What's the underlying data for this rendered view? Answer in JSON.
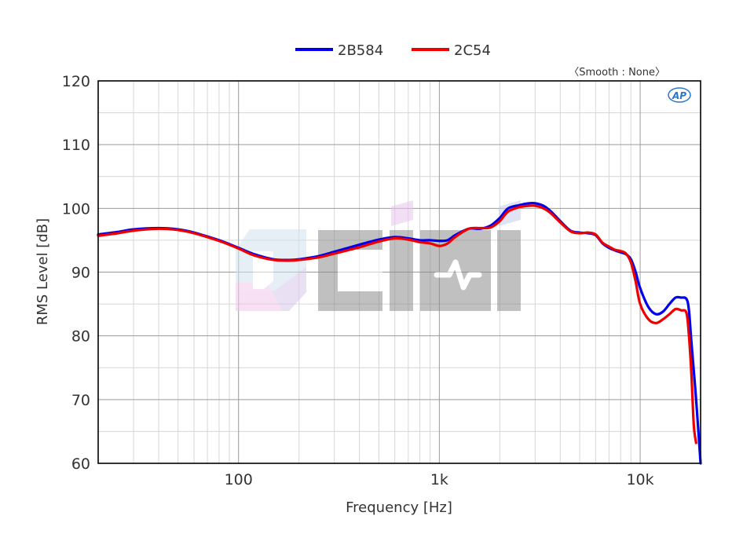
{
  "chart_data": {
    "type": "line",
    "title": "",
    "xlabel": "Frequency [Hz]",
    "ylabel": "RMS Level [dB]",
    "x_scale": "log",
    "xlim": [
      20,
      20000
    ],
    "ylim": [
      60,
      120
    ],
    "x_ticks": [
      100,
      1000,
      10000
    ],
    "x_tick_labels": [
      "100",
      "1k",
      "10k"
    ],
    "y_ticks": [
      60,
      70,
      80,
      90,
      100,
      110,
      120
    ],
    "grid": true,
    "legend_position": "top-center",
    "annotation": "〈Smooth : None〉",
    "logo_text": "AP",
    "watermark_text": "Cini",
    "series": [
      {
        "name": "2B584",
        "color": "#0000ee",
        "x": [
          20,
          25,
          30,
          40,
          50,
          60,
          80,
          100,
          120,
          150,
          180,
          200,
          250,
          300,
          400,
          500,
          600,
          700,
          800,
          900,
          1000,
          1100,
          1200,
          1400,
          1600,
          1800,
          2000,
          2200,
          2500,
          2800,
          3000,
          3300,
          3600,
          4000,
          4500,
          5000,
          5500,
          6000,
          6500,
          7000,
          7500,
          8000,
          8500,
          9000,
          9500,
          10000,
          11000,
          12000,
          13000,
          14000,
          15000,
          16000,
          17000,
          17500,
          18000,
          19000,
          20000
        ],
        "y": [
          95.9,
          96.3,
          96.7,
          96.9,
          96.7,
          96.2,
          95.0,
          93.8,
          92.8,
          92.0,
          91.9,
          92.0,
          92.5,
          93.2,
          94.3,
          95.1,
          95.5,
          95.3,
          95.0,
          95.0,
          94.9,
          95.0,
          95.8,
          96.8,
          96.8,
          97.3,
          98.5,
          100.0,
          100.5,
          100.8,
          100.8,
          100.4,
          99.5,
          98.0,
          96.5,
          96.2,
          96.1,
          95.8,
          94.5,
          93.8,
          93.4,
          93.1,
          92.8,
          92.0,
          90.0,
          87.5,
          84.5,
          83.4,
          83.8,
          85.0,
          86.0,
          86.0,
          85.8,
          84.0,
          79.0,
          70.0,
          60.0
        ]
      },
      {
        "name": "2C54",
        "color": "#ee0000",
        "x": [
          20,
          25,
          30,
          40,
          50,
          60,
          80,
          100,
          120,
          150,
          180,
          200,
          250,
          300,
          400,
          500,
          600,
          700,
          800,
          900,
          1000,
          1100,
          1200,
          1400,
          1600,
          1800,
          2000,
          2200,
          2500,
          2800,
          3000,
          3300,
          3600,
          4000,
          4500,
          5000,
          5500,
          6000,
          6500,
          7000,
          7500,
          8000,
          8500,
          9000,
          9500,
          10000,
          11000,
          12000,
          13000,
          14000,
          15000,
          16000,
          17000,
          17500,
          18000,
          18500,
          19000
        ],
        "y": [
          95.7,
          96.1,
          96.5,
          96.8,
          96.6,
          96.1,
          94.9,
          93.7,
          92.6,
          91.9,
          91.8,
          91.9,
          92.3,
          92.9,
          93.9,
          94.8,
          95.3,
          95.1,
          94.7,
          94.5,
          94.1,
          94.5,
          95.5,
          96.8,
          96.9,
          97.0,
          98.0,
          99.5,
          100.2,
          100.4,
          100.4,
          100.0,
          99.2,
          97.8,
          96.4,
          96.1,
          96.2,
          95.9,
          94.6,
          94.0,
          93.5,
          93.3,
          92.9,
          91.5,
          88.5,
          85.0,
          82.6,
          82.0,
          82.6,
          83.4,
          84.2,
          84.0,
          83.6,
          80.0,
          74.0,
          66.0,
          63.2
        ]
      }
    ]
  }
}
